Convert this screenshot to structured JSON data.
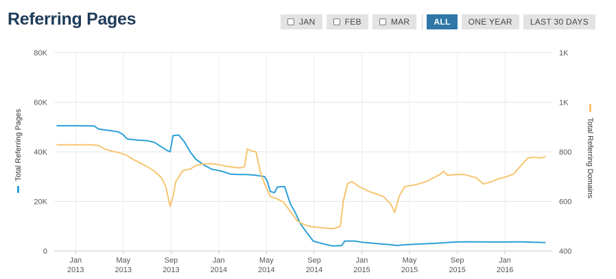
{
  "page": {
    "title": "Referring Pages"
  },
  "toolbar": {
    "checkboxes": [
      {
        "label": "JAN",
        "checked": false
      },
      {
        "label": "FEB",
        "checked": false
      },
      {
        "label": "MAR",
        "checked": false
      }
    ],
    "ranges": [
      {
        "label": "ALL",
        "active": true
      },
      {
        "label": "ONE YEAR",
        "active": false
      },
      {
        "label": "LAST 30 DAYS",
        "active": false
      }
    ]
  },
  "chart_data": {
    "type": "line",
    "x_ticks": [
      {
        "month": "Jan",
        "year": "2013",
        "t": 2013.0
      },
      {
        "month": "May",
        "year": "2013",
        "t": 2013.333
      },
      {
        "month": "Sep",
        "year": "2013",
        "t": 2013.667
      },
      {
        "month": "Jan",
        "year": "2014",
        "t": 2014.0
      },
      {
        "month": "May",
        "year": "2014",
        "t": 2014.333
      },
      {
        "month": "Sep",
        "year": "2014",
        "t": 2014.667
      },
      {
        "month": "Jan",
        "year": "2015",
        "t": 2015.0
      },
      {
        "month": "May",
        "year": "2015",
        "t": 2015.333
      },
      {
        "month": "Sep",
        "year": "2015",
        "t": 2015.667
      },
      {
        "month": "Jan",
        "year": "2016",
        "t": 2016.0
      }
    ],
    "xlim": [
      2012.85,
      2016.33
    ],
    "y_left": {
      "label": "Total Referring Pages",
      "min": 0,
      "max": 80000,
      "ticks": [
        0,
        20000,
        40000,
        60000,
        80000
      ],
      "tick_labels": [
        "0",
        "20K",
        "40K",
        "60K",
        "80K"
      ]
    },
    "y_right": {
      "label": "Total Referring Domains",
      "min": 400,
      "max": 1200,
      "ticks": [
        400,
        600,
        800,
        1000,
        1200
      ],
      "tick_labels": [
        "400",
        "600",
        "800",
        "1K",
        "1K"
      ]
    },
    "grid": true,
    "series": [
      {
        "name": "Total Referring Pages",
        "axis": "left",
        "color": "#2a9fd6",
        "points": [
          [
            2012.87,
            50500
          ],
          [
            2013.0,
            50500
          ],
          [
            2013.13,
            50400
          ],
          [
            2013.16,
            49200
          ],
          [
            2013.25,
            48500
          ],
          [
            2013.3,
            48000
          ],
          [
            2013.33,
            47000
          ],
          [
            2013.36,
            45200
          ],
          [
            2013.42,
            44800
          ],
          [
            2013.5,
            44500
          ],
          [
            2013.55,
            43800
          ],
          [
            2013.6,
            42000
          ],
          [
            2013.64,
            40500
          ],
          [
            2013.66,
            40000
          ],
          [
            2013.68,
            46500
          ],
          [
            2013.72,
            46800
          ],
          [
            2013.76,
            44000
          ],
          [
            2013.8,
            40000
          ],
          [
            2013.84,
            37000
          ],
          [
            2013.9,
            34500
          ],
          [
            2013.95,
            33000
          ],
          [
            2014.02,
            32200
          ],
          [
            2014.08,
            31000
          ],
          [
            2014.15,
            30800
          ],
          [
            2014.2,
            30800
          ],
          [
            2014.26,
            30500
          ],
          [
            2014.32,
            30000
          ],
          [
            2014.34,
            28000
          ],
          [
            2014.36,
            24000
          ],
          [
            2014.39,
            23500
          ],
          [
            2014.41,
            25800
          ],
          [
            2014.46,
            26000
          ],
          [
            2014.5,
            19000
          ],
          [
            2014.53,
            16000
          ],
          [
            2014.57,
            11000
          ],
          [
            2014.62,
            7000
          ],
          [
            2014.66,
            4000
          ],
          [
            2014.72,
            3000
          ],
          [
            2014.8,
            2000
          ],
          [
            2014.86,
            2200
          ],
          [
            2014.88,
            4000
          ],
          [
            2014.95,
            4000
          ],
          [
            2015.0,
            3500
          ],
          [
            2015.1,
            3000
          ],
          [
            2015.2,
            2500
          ],
          [
            2015.25,
            2200
          ],
          [
            2015.3,
            2500
          ],
          [
            2015.4,
            2800
          ],
          [
            2015.55,
            3200
          ],
          [
            2015.65,
            3600
          ],
          [
            2015.75,
            3700
          ],
          [
            2015.9,
            3600
          ],
          [
            2016.0,
            3600
          ],
          [
            2016.1,
            3700
          ],
          [
            2016.2,
            3500
          ],
          [
            2016.28,
            3400
          ]
        ]
      },
      {
        "name": "Total Referring Domains",
        "axis": "right",
        "color": "#f7c46e",
        "points": [
          [
            2012.87,
            828
          ],
          [
            2013.0,
            828
          ],
          [
            2013.1,
            828
          ],
          [
            2013.16,
            826
          ],
          [
            2013.2,
            812
          ],
          [
            2013.25,
            803
          ],
          [
            2013.3,
            797
          ],
          [
            2013.35,
            788
          ],
          [
            2013.4,
            770
          ],
          [
            2013.45,
            755
          ],
          [
            2013.5,
            740
          ],
          [
            2013.55,
            722
          ],
          [
            2013.6,
            695
          ],
          [
            2013.63,
            660
          ],
          [
            2013.66,
            580
          ],
          [
            2013.68,
            620
          ],
          [
            2013.7,
            680
          ],
          [
            2013.75,
            725
          ],
          [
            2013.8,
            730
          ],
          [
            2013.84,
            745
          ],
          [
            2013.88,
            750
          ],
          [
            2013.95,
            752
          ],
          [
            2014.0,
            748
          ],
          [
            2014.05,
            742
          ],
          [
            2014.1,
            738
          ],
          [
            2014.15,
            735
          ],
          [
            2014.18,
            740
          ],
          [
            2014.2,
            812
          ],
          [
            2014.22,
            805
          ],
          [
            2014.26,
            800
          ],
          [
            2014.29,
            720
          ],
          [
            2014.32,
            670
          ],
          [
            2014.36,
            620
          ],
          [
            2014.4,
            612
          ],
          [
            2014.45,
            598
          ],
          [
            2014.5,
            560
          ],
          [
            2014.55,
            520
          ],
          [
            2014.6,
            505
          ],
          [
            2014.65,
            498
          ],
          [
            2014.7,
            495
          ],
          [
            2014.75,
            492
          ],
          [
            2014.8,
            490
          ],
          [
            2014.85,
            500
          ],
          [
            2014.87,
            600
          ],
          [
            2014.9,
            672
          ],
          [
            2014.93,
            680
          ],
          [
            2014.98,
            660
          ],
          [
            2015.05,
            640
          ],
          [
            2015.1,
            630
          ],
          [
            2015.15,
            620
          ],
          [
            2015.2,
            590
          ],
          [
            2015.23,
            555
          ],
          [
            2015.26,
            620
          ],
          [
            2015.3,
            660
          ],
          [
            2015.38,
            668
          ],
          [
            2015.45,
            680
          ],
          [
            2015.5,
            695
          ],
          [
            2015.55,
            710
          ],
          [
            2015.57,
            722
          ],
          [
            2015.6,
            705
          ],
          [
            2015.65,
            708
          ],
          [
            2015.72,
            708
          ],
          [
            2015.8,
            695
          ],
          [
            2015.85,
            670
          ],
          [
            2015.9,
            678
          ],
          [
            2015.95,
            690
          ],
          [
            2016.0,
            698
          ],
          [
            2016.06,
            710
          ],
          [
            2016.12,
            750
          ],
          [
            2016.16,
            775
          ],
          [
            2016.2,
            778
          ],
          [
            2016.25,
            775
          ],
          [
            2016.28,
            780
          ]
        ]
      }
    ]
  }
}
